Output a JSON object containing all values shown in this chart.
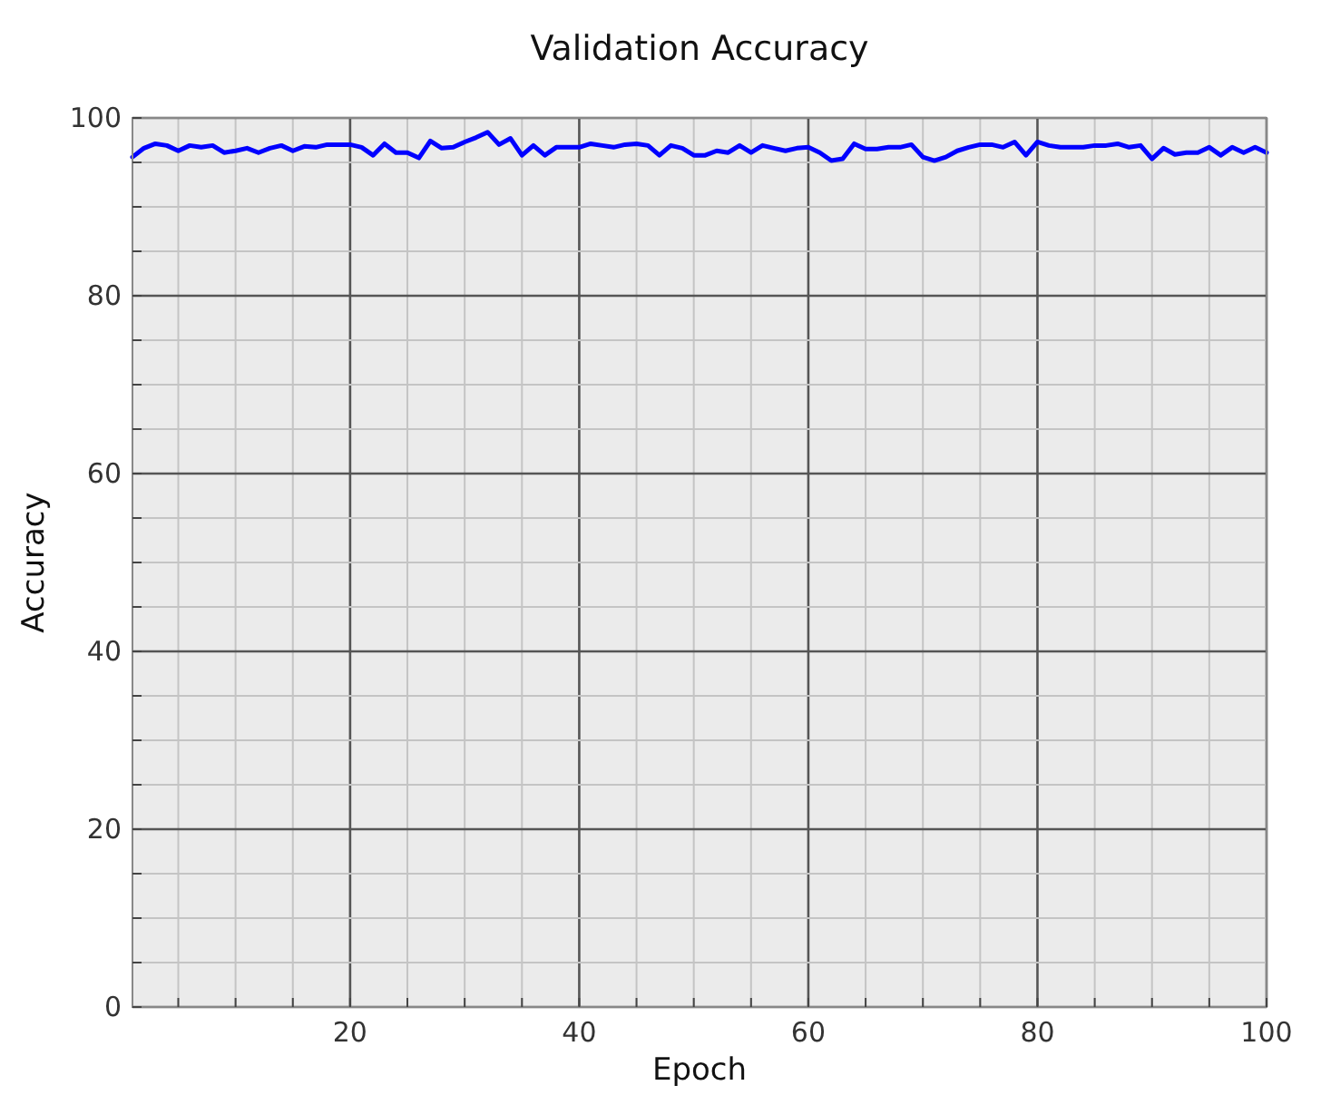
{
  "chart_data": {
    "type": "line",
    "title": "Validation Accuracy",
    "xlabel": "Epoch",
    "ylabel": "Accuracy",
    "x": [
      1,
      2,
      3,
      4,
      5,
      6,
      7,
      8,
      9,
      10,
      11,
      12,
      13,
      14,
      15,
      16,
      17,
      18,
      19,
      20,
      21,
      22,
      23,
      24,
      25,
      26,
      27,
      28,
      29,
      30,
      31,
      32,
      33,
      34,
      35,
      36,
      37,
      38,
      39,
      40,
      41,
      42,
      43,
      44,
      45,
      46,
      47,
      48,
      49,
      50,
      51,
      52,
      53,
      54,
      55,
      56,
      57,
      58,
      59,
      60,
      61,
      62,
      63,
      64,
      65,
      66,
      67,
      68,
      69,
      70,
      71,
      72,
      73,
      74,
      75,
      76,
      77,
      78,
      79,
      80,
      81,
      82,
      83,
      84,
      85,
      86,
      87,
      88,
      89,
      90,
      91,
      92,
      93,
      94,
      95,
      96,
      97,
      98,
      99,
      100
    ],
    "series": [
      {
        "color": "#0000ff",
        "values": [
          95.6,
          96.6,
          97.1,
          96.9,
          96.3,
          96.9,
          96.7,
          96.9,
          96.1,
          96.3,
          96.6,
          96.1,
          96.6,
          96.9,
          96.3,
          96.8,
          96.7,
          97.0,
          97.0,
          97.0,
          96.7,
          95.8,
          97.1,
          96.1,
          96.1,
          95.5,
          97.4,
          96.6,
          96.7,
          97.3,
          97.8,
          98.4,
          97.0,
          97.7,
          95.8,
          96.9,
          95.8,
          96.7,
          96.7,
          96.7,
          97.1,
          96.9,
          96.7,
          97.0,
          97.1,
          96.9,
          95.8,
          96.9,
          96.6,
          95.8,
          95.8,
          96.3,
          96.1,
          96.9,
          96.1,
          96.9,
          96.6,
          96.3,
          96.6,
          96.7,
          96.1,
          95.2,
          95.4,
          97.1,
          96.5,
          96.5,
          96.7,
          96.7,
          97.0,
          95.6,
          95.2,
          95.6,
          96.3,
          96.7,
          97.0,
          97.0,
          96.7,
          97.3,
          95.8,
          97.3,
          96.9,
          96.7,
          96.7,
          96.7,
          96.9,
          96.9,
          97.1,
          96.7,
          96.9,
          95.4,
          96.6,
          95.9,
          96.1,
          96.1,
          96.7,
          95.8,
          96.7,
          96.1,
          96.7,
          96.1
        ]
      }
    ],
    "xlim": [
      1,
      100
    ],
    "xticks": [
      {
        "value": 5,
        "label": null
      },
      {
        "value": 10,
        "label": null
      },
      {
        "value": 15,
        "label": null
      },
      20,
      {
        "value": 25,
        "label": null
      },
      {
        "value": 30,
        "label": null
      },
      {
        "value": 35,
        "label": null
      },
      40,
      {
        "value": 45,
        "label": null
      },
      {
        "value": 50,
        "label": null
      },
      {
        "value": 55,
        "label": null
      },
      60,
      {
        "value": 65,
        "label": null
      },
      {
        "value": 70,
        "label": null
      },
      {
        "value": 75,
        "label": null
      },
      80,
      {
        "value": 85,
        "label": null
      },
      {
        "value": 90,
        "label": null
      },
      {
        "value": 95,
        "label": null
      },
      100
    ],
    "ylim": [
      0,
      100
    ],
    "yticks": [
      0,
      {
        "value": 5,
        "label": null
      },
      {
        "value": 10,
        "label": null
      },
      {
        "value": 15,
        "label": null
      },
      20,
      {
        "value": 25,
        "label": null
      },
      {
        "value": 30,
        "label": null
      },
      {
        "value": 35,
        "label": null
      },
      40,
      {
        "value": 45,
        "label": null
      },
      {
        "value": 50,
        "label": null
      },
      {
        "value": 55,
        "label": null
      },
      60,
      {
        "value": 65,
        "label": null
      },
      {
        "value": 70,
        "label": null
      },
      {
        "value": 75,
        "label": null
      },
      80,
      {
        "value": 85,
        "label": null
      },
      {
        "value": 90,
        "label": null
      },
      {
        "value": 95,
        "label": null
      },
      100
    ],
    "grid": true,
    "line_style": "solid"
  }
}
